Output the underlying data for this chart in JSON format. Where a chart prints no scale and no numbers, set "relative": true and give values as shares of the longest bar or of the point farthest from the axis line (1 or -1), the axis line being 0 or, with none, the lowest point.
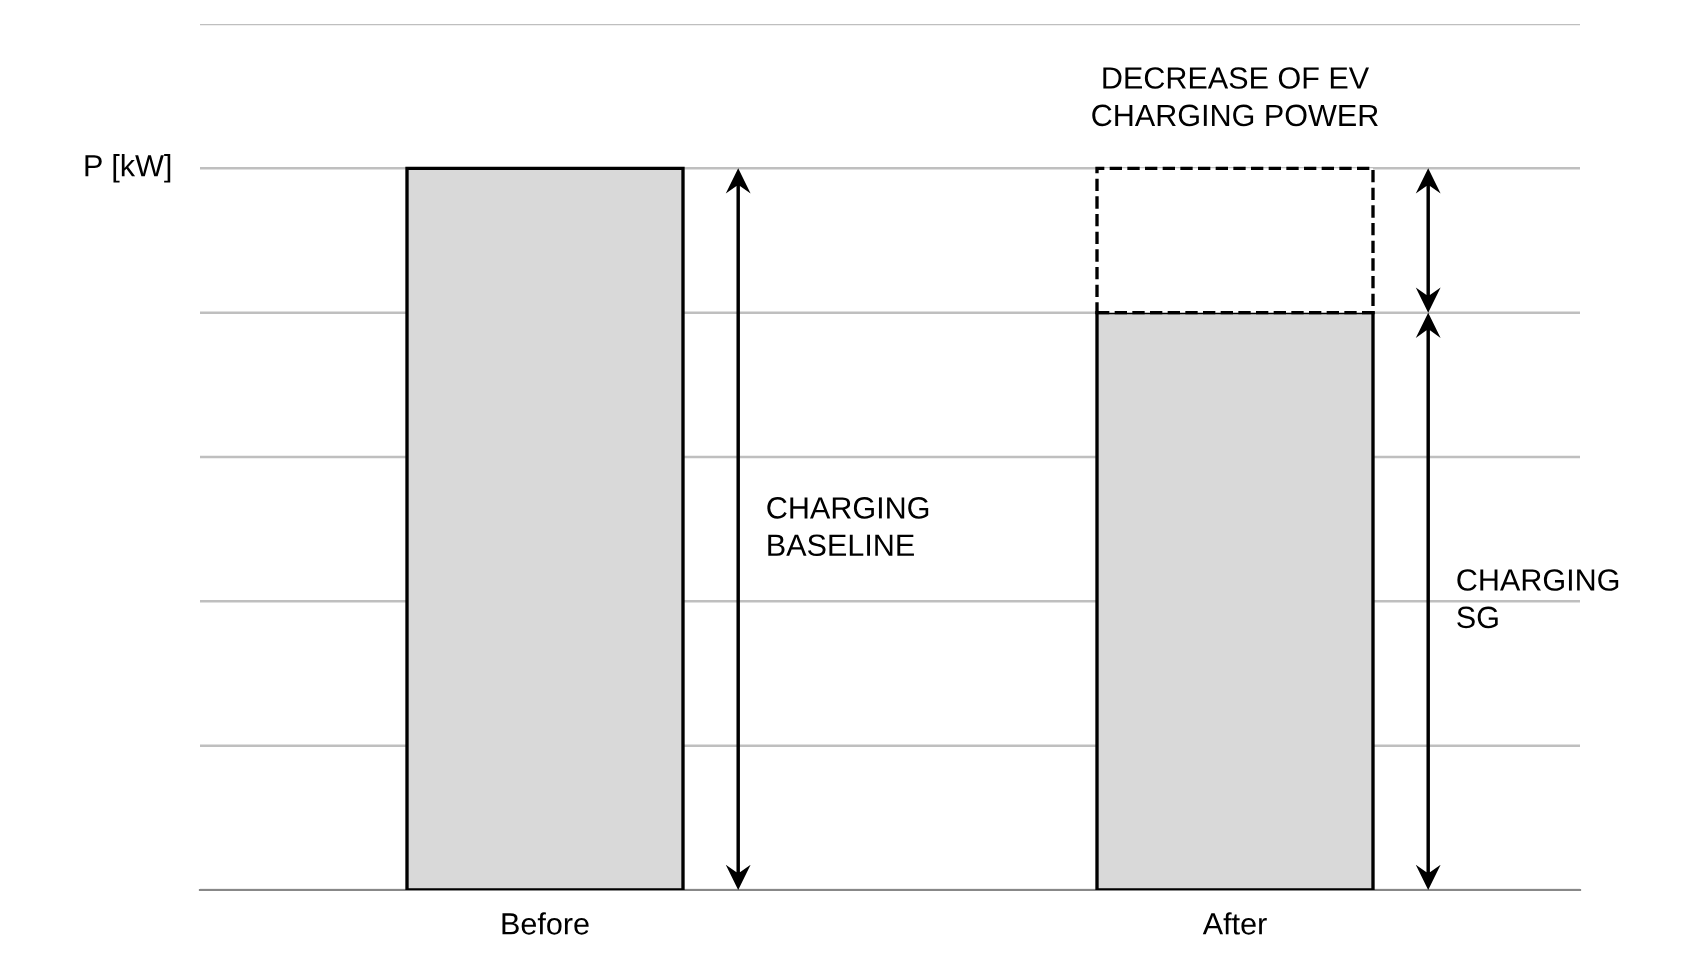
{
  "chart_data": {
    "type": "bar",
    "relative": true,
    "stacked": true,
    "ylabel": "P [kW]",
    "categories": [
      "Before",
      "After"
    ],
    "series": [
      {
        "color": "#d9d9d9",
        "values": [
          1,
          0.8
        ],
        "line_style": "solid"
      },
      {
        "color": "#ffffff",
        "values": [
          null,
          0.2
        ],
        "line_style": "dashed"
      }
    ],
    "grid": "y",
    "annotations": [
      "CHARGING\nBASELINE",
      "CHARGING\nSG",
      "DECREASE OF EV\nCHARGING POWER"
    ]
  }
}
